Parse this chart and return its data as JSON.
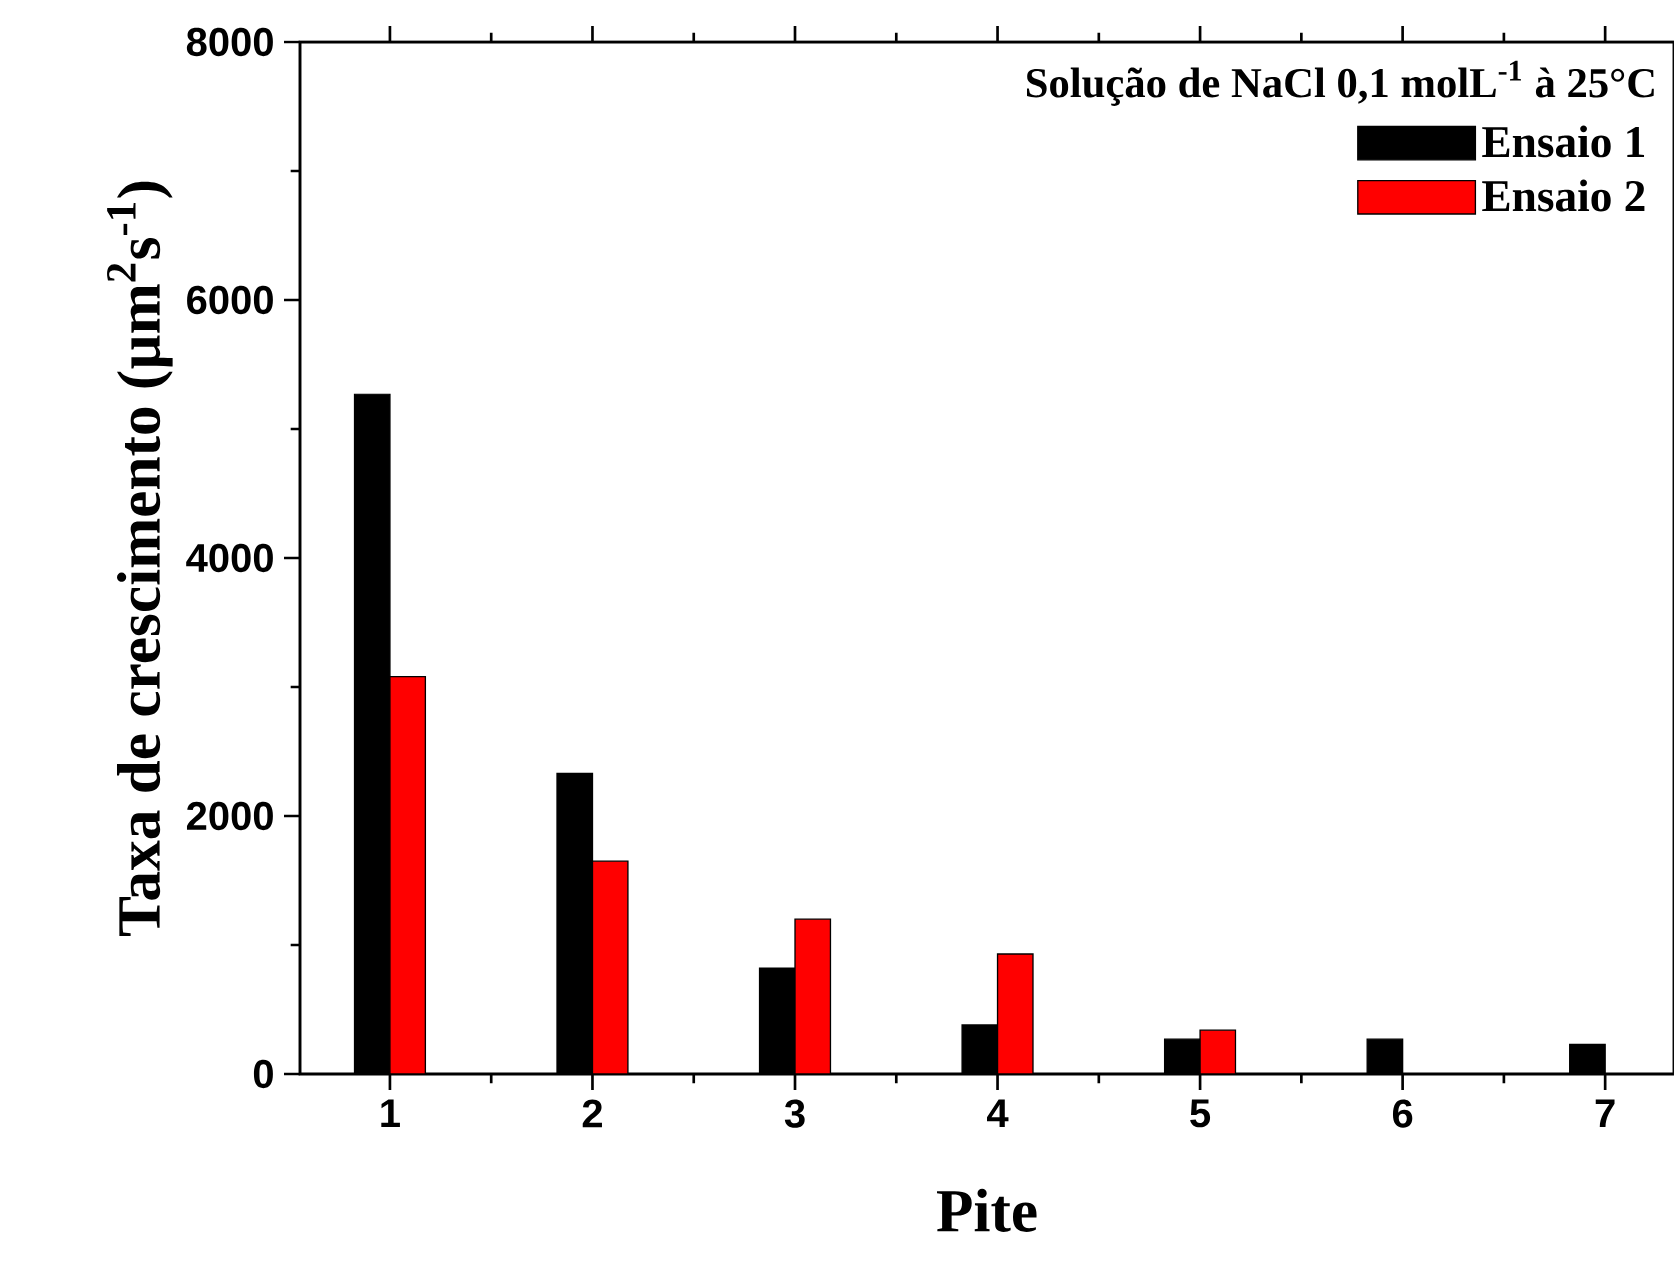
{
  "chart_data": {
    "type": "bar",
    "xlabel": "Pite",
    "ylabel": "Taxa de crescimento (µm$^{2}$s$^{-1}$)",
    "legend_title": "Solução de NaCl 0,1 molL$^{-1}$ à 25°C",
    "categories": [
      "1",
      "2",
      "3",
      "4",
      "5",
      "6",
      "7"
    ],
    "series": [
      {
        "name": "Ensaio 1",
        "color": "#000000",
        "values": [
          5270,
          2330,
          820,
          380,
          270,
          270,
          230
        ]
      },
      {
        "name": "Ensaio 2",
        "color": "#ff0000",
        "values": [
          3080,
          1650,
          1200,
          930,
          340,
          null,
          null
        ]
      }
    ],
    "ylim": [
      0,
      8000
    ],
    "yticks": [
      0,
      2000,
      4000,
      6000,
      8000
    ],
    "grid": false,
    "legend": "top right"
  }
}
